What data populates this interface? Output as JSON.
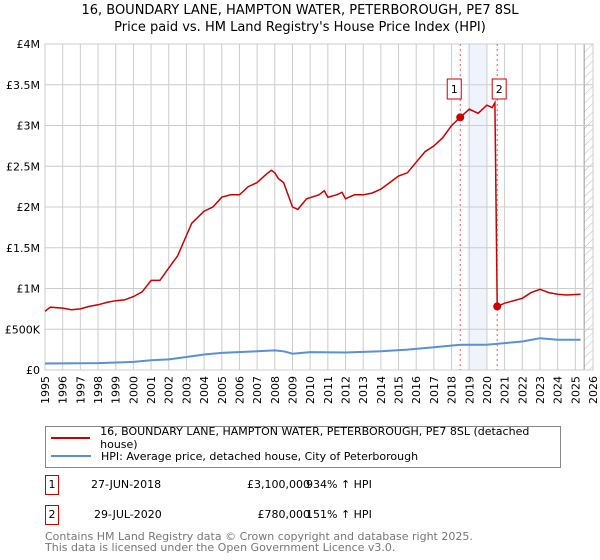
{
  "title_line1": "16, BOUNDARY LANE, HAMPTON WATER, PETERBOROUGH, PE7 8SL",
  "title_line2": "Price paid vs. HM Land Registry's House Price Index (HPI)",
  "colors": {
    "property": "#cc0000",
    "hpi": "#5b8fd6",
    "shade": "#eef3fc",
    "grid": "#cccccc"
  },
  "chart_data": {
    "type": "line",
    "title": "16, BOUNDARY LANE, HAMPTON WATER, PETERBOROUGH, PE7 8SL - Price paid vs. HM Land Registry's House Price Index (HPI)",
    "xlim": [
      1995,
      2026
    ],
    "ylim": [
      0,
      4000000
    ],
    "grid": true,
    "x_ticks": [
      "1995",
      "1996",
      "1997",
      "1998",
      "1999",
      "2000",
      "2001",
      "2002",
      "2003",
      "2004",
      "2005",
      "2006",
      "2007",
      "2008",
      "2009",
      "2010",
      "2011",
      "2012",
      "2013",
      "2014",
      "2015",
      "2016",
      "2017",
      "2018",
      "2019",
      "2020",
      "2021",
      "2022",
      "2023",
      "2024",
      "2025",
      "2026"
    ],
    "y_ticks": [
      {
        "value": 0,
        "label": "£0"
      },
      {
        "value": 500000,
        "label": "£500K"
      },
      {
        "value": 1000000,
        "label": "£1M"
      },
      {
        "value": 1500000,
        "label": "£1.5M"
      },
      {
        "value": 2000000,
        "label": "£2M"
      },
      {
        "value": 2500000,
        "label": "£2.5M"
      },
      {
        "value": 3000000,
        "label": "£3M"
      },
      {
        "value": 3500000,
        "label": "£3.5M"
      },
      {
        "value": 4000000,
        "label": "£4M"
      }
    ],
    "shaded_range": [
      2018.9,
      2020.0
    ],
    "future_hatch_from": 2025.5,
    "series": [
      {
        "name": "16, BOUNDARY LANE, HAMPTON WATER, PETERBOROUGH, PE7 8SL (detached house)",
        "color": "#cc0000",
        "points": [
          [
            1995,
            720000
          ],
          [
            1995.3,
            770000
          ],
          [
            1996,
            760000
          ],
          [
            1996.5,
            740000
          ],
          [
            1997,
            750000
          ],
          [
            1997.5,
            780000
          ],
          [
            1998,
            800000
          ],
          [
            1998.5,
            830000
          ],
          [
            1999,
            850000
          ],
          [
            1999.5,
            860000
          ],
          [
            2000,
            900000
          ],
          [
            2000.5,
            960000
          ],
          [
            2001,
            1100000
          ],
          [
            2001.5,
            1100000
          ],
          [
            2002,
            1250000
          ],
          [
            2002.5,
            1400000
          ],
          [
            2003,
            1650000
          ],
          [
            2003.3,
            1800000
          ],
          [
            2004,
            1950000
          ],
          [
            2004.5,
            2000000
          ],
          [
            2005,
            2120000
          ],
          [
            2005.5,
            2150000
          ],
          [
            2006,
            2150000
          ],
          [
            2006.5,
            2250000
          ],
          [
            2007,
            2300000
          ],
          [
            2007.5,
            2400000
          ],
          [
            2007.8,
            2450000
          ],
          [
            2008,
            2420000
          ],
          [
            2008.2,
            2350000
          ],
          [
            2008.5,
            2300000
          ],
          [
            2009,
            2000000
          ],
          [
            2009.3,
            1970000
          ],
          [
            2009.8,
            2100000
          ],
          [
            2010.5,
            2150000
          ],
          [
            2010.8,
            2200000
          ],
          [
            2011,
            2120000
          ],
          [
            2011.5,
            2150000
          ],
          [
            2011.8,
            2180000
          ],
          [
            2012,
            2100000
          ],
          [
            2012.5,
            2150000
          ],
          [
            2013,
            2150000
          ],
          [
            2013.5,
            2170000
          ],
          [
            2014,
            2220000
          ],
          [
            2014.5,
            2300000
          ],
          [
            2015,
            2380000
          ],
          [
            2015.5,
            2420000
          ],
          [
            2016,
            2550000
          ],
          [
            2016.5,
            2680000
          ],
          [
            2017,
            2750000
          ],
          [
            2017.5,
            2850000
          ],
          [
            2018,
            3000000
          ],
          [
            2018.49,
            3100000
          ],
          [
            2019,
            3200000
          ],
          [
            2019.5,
            3150000
          ],
          [
            2020,
            3250000
          ],
          [
            2020.3,
            3220000
          ],
          [
            2020.45,
            3280000
          ],
          [
            2020.58,
            780000
          ],
          [
            2021,
            820000
          ],
          [
            2022,
            880000
          ],
          [
            2022.5,
            950000
          ],
          [
            2023,
            990000
          ],
          [
            2023.5,
            950000
          ],
          [
            2024,
            930000
          ],
          [
            2024.5,
            920000
          ],
          [
            2025.3,
            930000
          ]
        ]
      },
      {
        "name": "HPI: Average price, detached house, City of Peterborough",
        "color": "#5b8fd6",
        "points": [
          [
            1995,
            80000
          ],
          [
            1998,
            85000
          ],
          [
            2000,
            100000
          ],
          [
            2001,
            120000
          ],
          [
            2002,
            130000
          ],
          [
            2003,
            160000
          ],
          [
            2004,
            190000
          ],
          [
            2005,
            210000
          ],
          [
            2007,
            230000
          ],
          [
            2008,
            240000
          ],
          [
            2008.5,
            230000
          ],
          [
            2009,
            200000
          ],
          [
            2010,
            220000
          ],
          [
            2012,
            215000
          ],
          [
            2014,
            230000
          ],
          [
            2015.5,
            250000
          ],
          [
            2017,
            280000
          ],
          [
            2018.5,
            310000
          ],
          [
            2020,
            310000
          ],
          [
            2021,
            330000
          ],
          [
            2022,
            350000
          ],
          [
            2023,
            390000
          ],
          [
            2024,
            370000
          ],
          [
            2025.3,
            370000
          ]
        ]
      }
    ],
    "sales": [
      {
        "label": "1",
        "x": 2018.49,
        "y": 3100000
      },
      {
        "label": "2",
        "x": 2020.58,
        "y": 780000
      }
    ]
  },
  "legend": [
    {
      "label": "16, BOUNDARY LANE, HAMPTON WATER, PETERBOROUGH, PE7 8SL (detached house)"
    },
    {
      "label": "HPI: Average price, detached house, City of Peterborough"
    }
  ],
  "transactions": [
    {
      "num": "1",
      "date": "27-JUN-2018",
      "price": "£3,100,000",
      "hpi": "934% ↑ HPI"
    },
    {
      "num": "2",
      "date": "29-JUL-2020",
      "price": "£780,000",
      "hpi": "151% ↑ HPI"
    }
  ],
  "footer_line1": "Contains HM Land Registry data © Crown copyright and database right 2025.",
  "footer_line2": "This data is licensed under the Open Government Licence v3.0."
}
